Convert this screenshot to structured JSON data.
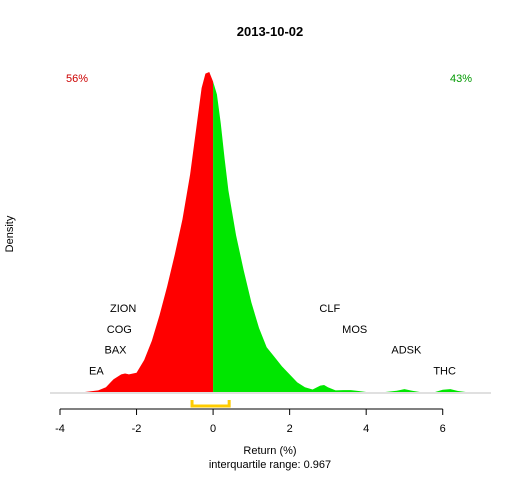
{
  "chart_data": {
    "type": "area",
    "title": "2013-10-02",
    "xlabel": "Return (%)",
    "ylabel": "Density",
    "subtitle": "interquartile range: 0.967",
    "xlim": [
      -4,
      7
    ],
    "ylim": [
      0,
      1
    ],
    "x_ticks": [
      -4,
      -2,
      0,
      2,
      4,
      6
    ],
    "split_at": 0,
    "left_pct_label": "56%",
    "right_pct_label": "43%",
    "colors": {
      "negative": "#ff0000",
      "positive": "#00e600",
      "left_pct": "#cc0000",
      "right_pct": "#009900",
      "iqr": "#ffcc00",
      "baseline": "#c0c0c0",
      "axis": "#000000"
    },
    "iqr": [
      -0.55,
      0.42
    ],
    "density": {
      "x": [
        -3.35,
        -3.0,
        -2.8,
        -2.6,
        -2.4,
        -2.3,
        -2.2,
        -2.0,
        -1.8,
        -1.6,
        -1.4,
        -1.2,
        -1.0,
        -0.8,
        -0.6,
        -0.4,
        -0.3,
        -0.2,
        -0.1,
        0.0,
        0.1,
        0.2,
        0.3,
        0.4,
        0.6,
        0.8,
        1.0,
        1.2,
        1.4,
        1.6,
        1.8,
        2.0,
        2.2,
        2.4,
        2.6,
        2.8,
        2.9,
        3.0,
        3.2,
        3.4,
        3.6,
        3.8,
        4.0,
        4.5,
        4.8,
        5.0,
        5.2,
        5.4,
        5.8,
        6.0,
        6.2,
        6.4,
        6.6
      ],
      "y": [
        0.0,
        0.005,
        0.015,
        0.04,
        0.055,
        0.058,
        0.055,
        0.06,
        0.1,
        0.16,
        0.24,
        0.33,
        0.43,
        0.54,
        0.68,
        0.86,
        0.95,
        0.995,
        1.0,
        0.97,
        0.93,
        0.84,
        0.73,
        0.63,
        0.49,
        0.38,
        0.28,
        0.2,
        0.14,
        0.11,
        0.08,
        0.055,
        0.03,
        0.015,
        0.008,
        0.02,
        0.022,
        0.015,
        0.005,
        0.006,
        0.006,
        0.003,
        0.0,
        0.0,
        0.004,
        0.009,
        0.004,
        0.0,
        0.0,
        0.007,
        0.009,
        0.003,
        0.0
      ]
    },
    "annotations": [
      {
        "label": "ZION",
        "x": -2.35,
        "y": 0.25
      },
      {
        "label": "COG",
        "x": -2.45,
        "y": 0.185
      },
      {
        "label": "BAX",
        "x": -2.55,
        "y": 0.12
      },
      {
        "label": "EA",
        "x": -3.05,
        "y": 0.055
      },
      {
        "label": "CLF",
        "x": 3.05,
        "y": 0.25
      },
      {
        "label": "MOS",
        "x": 3.7,
        "y": 0.185
      },
      {
        "label": "ADSK",
        "x": 5.05,
        "y": 0.12
      },
      {
        "label": "THC",
        "x": 6.05,
        "y": 0.055
      }
    ]
  }
}
